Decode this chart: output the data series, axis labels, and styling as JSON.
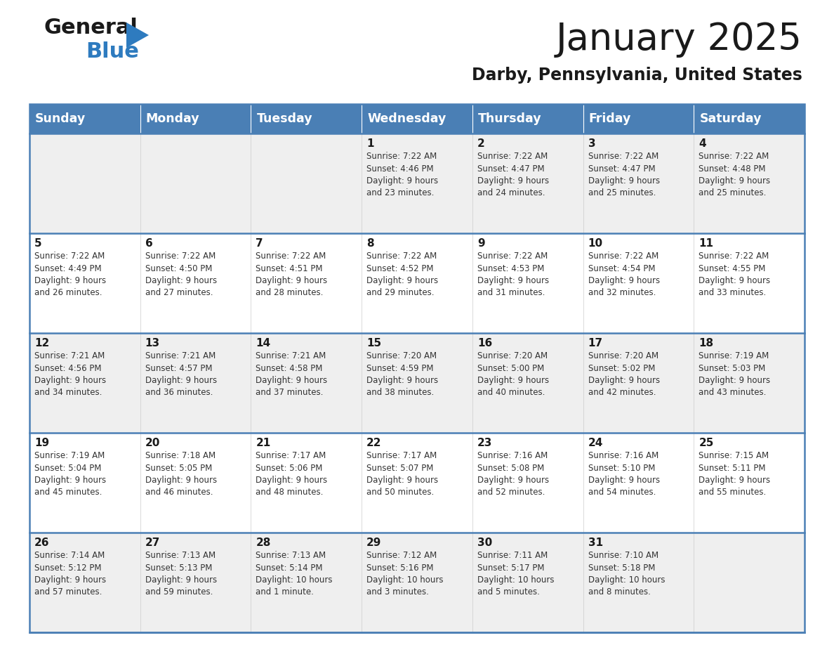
{
  "title": "January 2025",
  "subtitle": "Darby, Pennsylvania, United States",
  "header_color": "#4a7fb5",
  "header_text_color": "#ffffff",
  "cell_bg_even": "#efefef",
  "cell_bg_odd": "#ffffff",
  "border_color": "#4a7fb5",
  "day_names": [
    "Sunday",
    "Monday",
    "Tuesday",
    "Wednesday",
    "Thursday",
    "Friday",
    "Saturday"
  ],
  "weeks": [
    [
      {
        "day": "",
        "info": ""
      },
      {
        "day": "",
        "info": ""
      },
      {
        "day": "",
        "info": ""
      },
      {
        "day": "1",
        "info": "Sunrise: 7:22 AM\nSunset: 4:46 PM\nDaylight: 9 hours\nand 23 minutes."
      },
      {
        "day": "2",
        "info": "Sunrise: 7:22 AM\nSunset: 4:47 PM\nDaylight: 9 hours\nand 24 minutes."
      },
      {
        "day": "3",
        "info": "Sunrise: 7:22 AM\nSunset: 4:47 PM\nDaylight: 9 hours\nand 25 minutes."
      },
      {
        "day": "4",
        "info": "Sunrise: 7:22 AM\nSunset: 4:48 PM\nDaylight: 9 hours\nand 25 minutes."
      }
    ],
    [
      {
        "day": "5",
        "info": "Sunrise: 7:22 AM\nSunset: 4:49 PM\nDaylight: 9 hours\nand 26 minutes."
      },
      {
        "day": "6",
        "info": "Sunrise: 7:22 AM\nSunset: 4:50 PM\nDaylight: 9 hours\nand 27 minutes."
      },
      {
        "day": "7",
        "info": "Sunrise: 7:22 AM\nSunset: 4:51 PM\nDaylight: 9 hours\nand 28 minutes."
      },
      {
        "day": "8",
        "info": "Sunrise: 7:22 AM\nSunset: 4:52 PM\nDaylight: 9 hours\nand 29 minutes."
      },
      {
        "day": "9",
        "info": "Sunrise: 7:22 AM\nSunset: 4:53 PM\nDaylight: 9 hours\nand 31 minutes."
      },
      {
        "day": "10",
        "info": "Sunrise: 7:22 AM\nSunset: 4:54 PM\nDaylight: 9 hours\nand 32 minutes."
      },
      {
        "day": "11",
        "info": "Sunrise: 7:22 AM\nSunset: 4:55 PM\nDaylight: 9 hours\nand 33 minutes."
      }
    ],
    [
      {
        "day": "12",
        "info": "Sunrise: 7:21 AM\nSunset: 4:56 PM\nDaylight: 9 hours\nand 34 minutes."
      },
      {
        "day": "13",
        "info": "Sunrise: 7:21 AM\nSunset: 4:57 PM\nDaylight: 9 hours\nand 36 minutes."
      },
      {
        "day": "14",
        "info": "Sunrise: 7:21 AM\nSunset: 4:58 PM\nDaylight: 9 hours\nand 37 minutes."
      },
      {
        "day": "15",
        "info": "Sunrise: 7:20 AM\nSunset: 4:59 PM\nDaylight: 9 hours\nand 38 minutes."
      },
      {
        "day": "16",
        "info": "Sunrise: 7:20 AM\nSunset: 5:00 PM\nDaylight: 9 hours\nand 40 minutes."
      },
      {
        "day": "17",
        "info": "Sunrise: 7:20 AM\nSunset: 5:02 PM\nDaylight: 9 hours\nand 42 minutes."
      },
      {
        "day": "18",
        "info": "Sunrise: 7:19 AM\nSunset: 5:03 PM\nDaylight: 9 hours\nand 43 minutes."
      }
    ],
    [
      {
        "day": "19",
        "info": "Sunrise: 7:19 AM\nSunset: 5:04 PM\nDaylight: 9 hours\nand 45 minutes."
      },
      {
        "day": "20",
        "info": "Sunrise: 7:18 AM\nSunset: 5:05 PM\nDaylight: 9 hours\nand 46 minutes."
      },
      {
        "day": "21",
        "info": "Sunrise: 7:17 AM\nSunset: 5:06 PM\nDaylight: 9 hours\nand 48 minutes."
      },
      {
        "day": "22",
        "info": "Sunrise: 7:17 AM\nSunset: 5:07 PM\nDaylight: 9 hours\nand 50 minutes."
      },
      {
        "day": "23",
        "info": "Sunrise: 7:16 AM\nSunset: 5:08 PM\nDaylight: 9 hours\nand 52 minutes."
      },
      {
        "day": "24",
        "info": "Sunrise: 7:16 AM\nSunset: 5:10 PM\nDaylight: 9 hours\nand 54 minutes."
      },
      {
        "day": "25",
        "info": "Sunrise: 7:15 AM\nSunset: 5:11 PM\nDaylight: 9 hours\nand 55 minutes."
      }
    ],
    [
      {
        "day": "26",
        "info": "Sunrise: 7:14 AM\nSunset: 5:12 PM\nDaylight: 9 hours\nand 57 minutes."
      },
      {
        "day": "27",
        "info": "Sunrise: 7:13 AM\nSunset: 5:13 PM\nDaylight: 9 hours\nand 59 minutes."
      },
      {
        "day": "28",
        "info": "Sunrise: 7:13 AM\nSunset: 5:14 PM\nDaylight: 10 hours\nand 1 minute."
      },
      {
        "day": "29",
        "info": "Sunrise: 7:12 AM\nSunset: 5:16 PM\nDaylight: 10 hours\nand 3 minutes."
      },
      {
        "day": "30",
        "info": "Sunrise: 7:11 AM\nSunset: 5:17 PM\nDaylight: 10 hours\nand 5 minutes."
      },
      {
        "day": "31",
        "info": "Sunrise: 7:10 AM\nSunset: 5:18 PM\nDaylight: 10 hours\nand 8 minutes."
      },
      {
        "day": "",
        "info": ""
      }
    ]
  ],
  "logo_general_color": "#1a1a1a",
  "logo_blue_color": "#2e7bbf",
  "title_fontsize": 38,
  "subtitle_fontsize": 17,
  "header_fontsize": 12.5,
  "day_number_fontsize": 11,
  "info_fontsize": 8.5
}
